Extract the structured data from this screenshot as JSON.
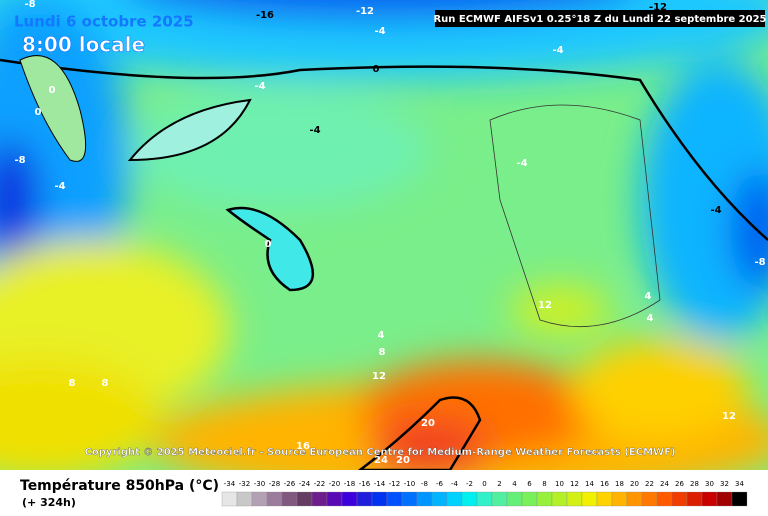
{
  "header": {
    "date": "Lundi 6 octobre 2025",
    "time": "8:00 locale",
    "run": "Run ECMWF AIFSv1 0.25°18 Z du Lundi 22 septembre 2025"
  },
  "copyright": "Copyright © 2025 Meteociel.fr - Source European Centre for Medium-Range Weather Forecasts (ECMWF)",
  "contour_labels": [
    -8,
    -16,
    -12,
    -12,
    -4,
    -4,
    0,
    -4,
    -4,
    0,
    0,
    -8,
    -4,
    0,
    -4,
    -4,
    -8,
    4,
    4,
    12,
    4,
    8,
    12,
    8,
    8,
    20,
    16,
    12,
    24,
    20
  ],
  "legend": {
    "title": "Température 850hPa (°C)",
    "lead": "(+ 324h)",
    "labels": [
      -34,
      -32,
      -30,
      -28,
      -26,
      -24,
      -22,
      -20,
      -18,
      -16,
      -14,
      -12,
      -10,
      -8,
      -6,
      -4,
      -2,
      0,
      2,
      4,
      6,
      8,
      10,
      12,
      14,
      16,
      18,
      20,
      22,
      24,
      26,
      28,
      30,
      32,
      34
    ],
    "colors": [
      "#e6e6e6",
      "#c8c8c8",
      "#b4a0b4",
      "#9c7c9c",
      "#805880",
      "#643c64",
      "#6e1e8c",
      "#5a0ab4",
      "#3c00dc",
      "#1e1edc",
      "#0032f0",
      "#0050ff",
      "#0070ff",
      "#0096ff",
      "#00b4ff",
      "#00d2ff",
      "#00f0f0",
      "#32f0c8",
      "#50f0a0",
      "#64f078",
      "#78f05a",
      "#96f03c",
      "#b4f028",
      "#d2f014",
      "#f0f000",
      "#ffd200",
      "#ffb400",
      "#ff9600",
      "#ff7800",
      "#ff5a00",
      "#f03c00",
      "#dc1e00",
      "#c80000",
      "#a00000",
      "#000000"
    ]
  }
}
